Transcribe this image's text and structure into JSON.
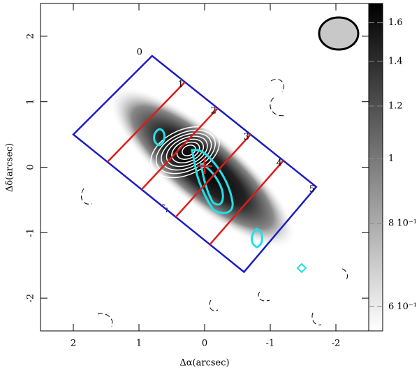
{
  "chart_data": {
    "type": "image",
    "xlabel": "Δα(arcsec)",
    "ylabel": "Δδ(arcsec)",
    "xlim": [
      2.5,
      -2.5
    ],
    "ylim": [
      -2.5,
      2.5
    ],
    "xticks": [
      2,
      1,
      0,
      -1,
      -2
    ],
    "yticks": [
      2,
      1,
      0,
      -1,
      -2
    ],
    "colorbar": {
      "lim": [
        0.552,
        1.71
      ],
      "log": true,
      "ticks": [
        1.6,
        1.4,
        1.2,
        1,
        {
          "value": 0.8,
          "label": "8 10⁻¹"
        },
        {
          "value": 0.6,
          "label": "6 10⁻¹"
        }
      ]
    },
    "region": {
      "corners": [
        [
          0.8,
          1.7
        ],
        [
          -1.7,
          -0.3
        ],
        [
          -0.6,
          -1.6
        ],
        [
          2.0,
          0.5
        ]
      ],
      "slice_labels": [
        "0",
        "1",
        "2",
        "3",
        "4",
        "5"
      ],
      "color": "#1c1cc4",
      "divider_color": "#e01a1a"
    }
  }
}
